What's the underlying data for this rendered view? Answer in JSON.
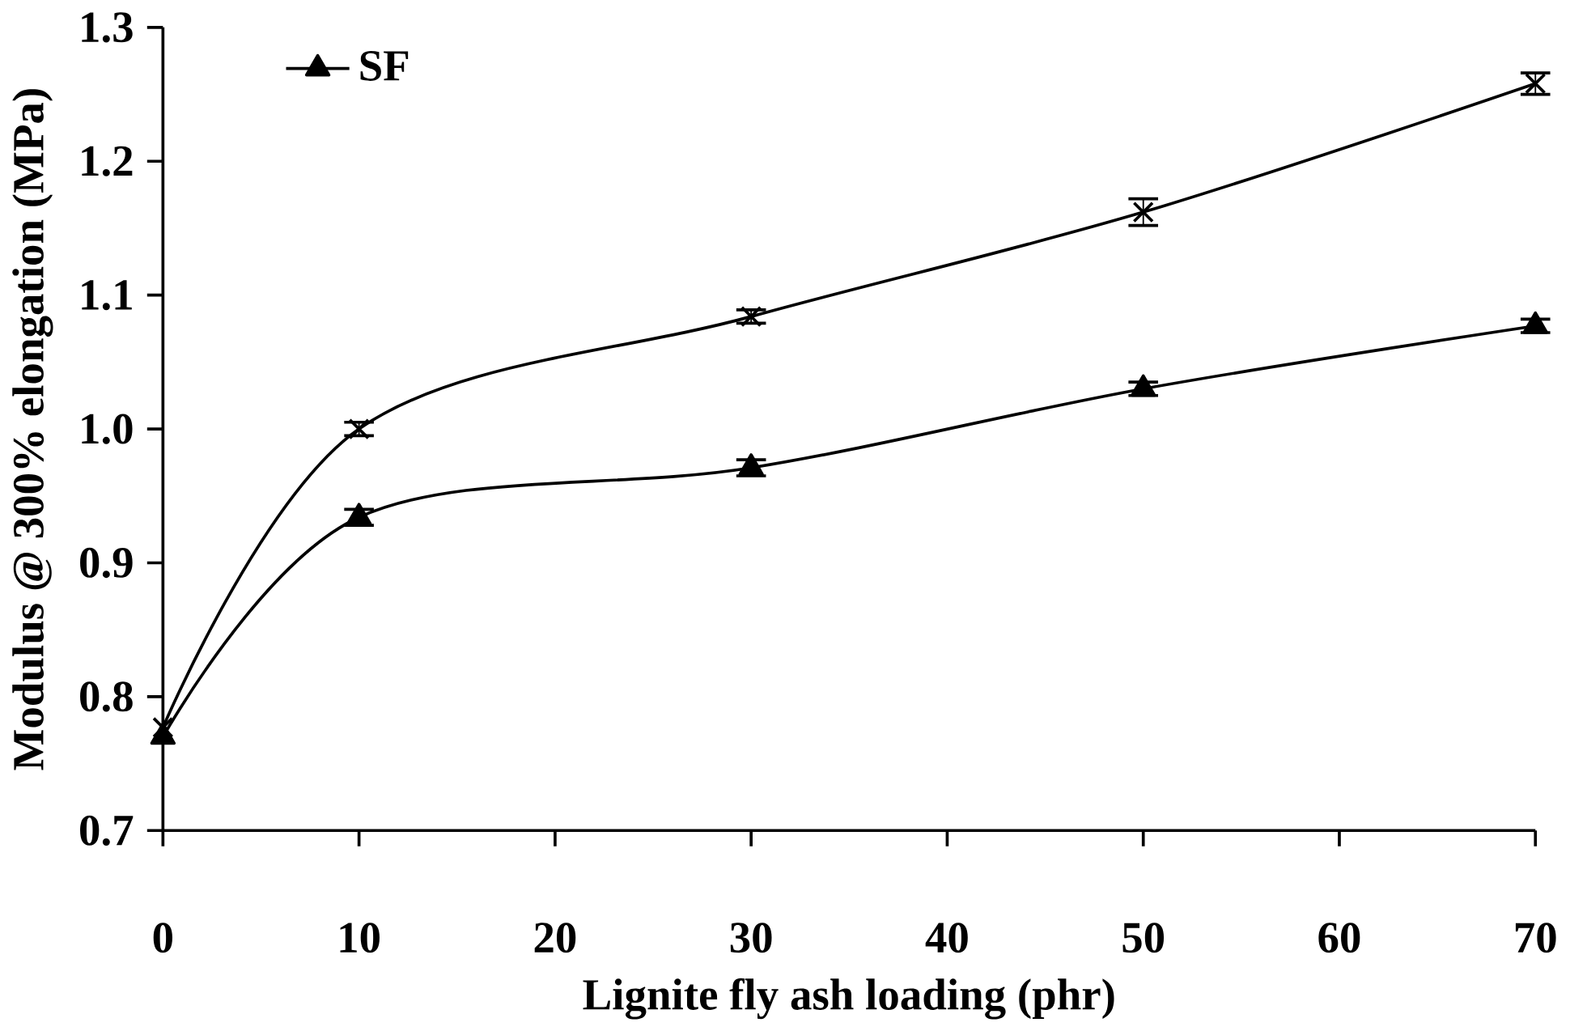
{
  "chart_data": {
    "type": "line",
    "xlabel": "Lignite fly ash loading (phr)",
    "ylabel": "Modulus @ 300% elongation (MPa)",
    "x": [
      0,
      10,
      30,
      50,
      70
    ],
    "series": [
      {
        "name": "SF",
        "color": "#000000",
        "marker": "triangle",
        "values": [
          0.77,
          0.934,
          0.971,
          1.03,
          1.077
        ],
        "errors": [
          null,
          0.006,
          0.006,
          0.005,
          0.005
        ]
      },
      {
        "color": "#000000",
        "marker": "cross",
        "values": [
          0.777,
          1.0,
          1.084,
          1.162,
          1.258
        ],
        "errors": [
          null,
          0.005,
          0.005,
          0.01,
          0.008
        ]
      }
    ],
    "xlim": [
      0,
      70
    ],
    "xticks": [
      0,
      10,
      20,
      30,
      40,
      50,
      60,
      70
    ],
    "ylim": [
      0.7,
      1.3
    ],
    "yticks": [
      {
        "value": 0.7,
        "label": "0.7"
      },
      {
        "value": 0.8,
        "label": "0.8"
      },
      {
        "value": 0.9,
        "label": "0.9"
      },
      {
        "value": 1.0,
        "label": "1.0"
      },
      {
        "value": 1.1,
        "label": "1.1"
      },
      {
        "value": 1.2,
        "label": "1.2"
      },
      {
        "value": 1.3,
        "label": "1.3"
      }
    ],
    "legend": "top left",
    "grid": false,
    "line_style": "solid"
  }
}
